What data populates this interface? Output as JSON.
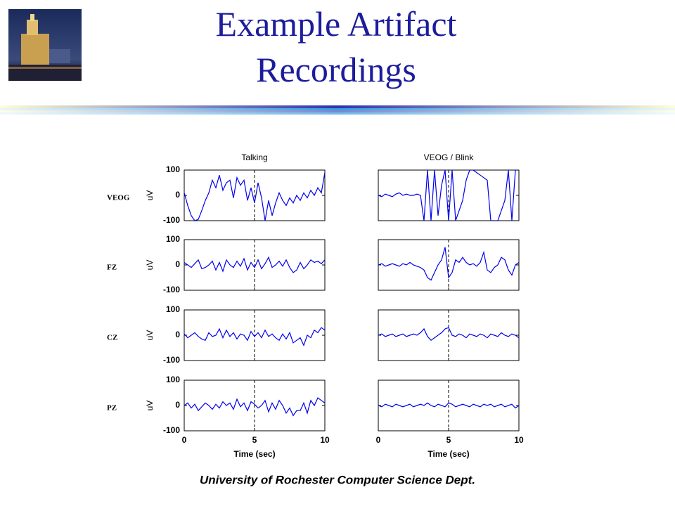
{
  "title": "Example Artifact Recordings",
  "footer": "University of Rochester Computer Science Dept.",
  "chart_data": [
    {
      "type": "line",
      "title": "Talking",
      "label": "VEOG",
      "ylabel": "uV",
      "xlim": [
        0,
        10
      ],
      "xticks": [
        0,
        5,
        10
      ],
      "ylim": [
        -100,
        100
      ],
      "yticks": [
        -100,
        0,
        100
      ],
      "marker_x": 5,
      "x": [
        0,
        0.25,
        0.5,
        0.75,
        1,
        1.25,
        1.5,
        1.75,
        2,
        2.25,
        2.5,
        2.75,
        3,
        3.25,
        3.5,
        3.75,
        4,
        4.25,
        4.5,
        4.75,
        5,
        5.25,
        5.5,
        5.75,
        6,
        6.25,
        6.5,
        6.75,
        7,
        7.25,
        7.5,
        7.75,
        8,
        8.25,
        8.5,
        8.75,
        9,
        9.25,
        9.5,
        9.75,
        10
      ],
      "series": [
        {
          "color": "#0000ee",
          "values": [
            10,
            -40,
            -80,
            -100,
            -95,
            -60,
            -20,
            10,
            60,
            30,
            80,
            20,
            50,
            60,
            -10,
            70,
            40,
            60,
            -20,
            30,
            -30,
            50,
            -10,
            -100,
            -20,
            -80,
            -30,
            10,
            -20,
            -40,
            -10,
            -30,
            0,
            -20,
            10,
            -10,
            20,
            0,
            30,
            10,
            90
          ]
        }
      ]
    },
    {
      "type": "line",
      "title": "VEOG / Blink",
      "xlim": [
        0,
        10
      ],
      "xticks": [
        0,
        5,
        10
      ],
      "ylim": [
        -100,
        100
      ],
      "yticks": [
        -100,
        0,
        100
      ],
      "marker_x": 5,
      "x": [
        0,
        0.25,
        0.5,
        0.75,
        1,
        1.25,
        1.5,
        1.75,
        2,
        2.25,
        2.5,
        2.75,
        3,
        3.25,
        3.5,
        3.75,
        4,
        4.25,
        4.5,
        4.75,
        5,
        5.25,
        5.5,
        5.75,
        6,
        6.25,
        6.5,
        6.75,
        7,
        7.25,
        7.5,
        7.75,
        8,
        8.25,
        8.5,
        8.75,
        9,
        9.25,
        9.5,
        9.75,
        10
      ],
      "series": [
        {
          "color": "#0000ee",
          "values": [
            0,
            -5,
            5,
            0,
            -5,
            5,
            10,
            0,
            5,
            0,
            0,
            5,
            0,
            -100,
            100,
            -100,
            100,
            -80,
            40,
            100,
            -100,
            100,
            -100,
            -60,
            -20,
            60,
            100,
            100,
            90,
            80,
            70,
            60,
            -100,
            -100,
            -100,
            -60,
            -20,
            100,
            -100,
            100,
            100
          ]
        }
      ]
    },
    {
      "type": "line",
      "label": "FZ",
      "ylabel": "uV",
      "xlim": [
        0,
        10
      ],
      "xticks": [
        0,
        5,
        10
      ],
      "ylim": [
        -100,
        100
      ],
      "yticks": [
        -100,
        0,
        100
      ],
      "marker_x": 5,
      "x": [
        0,
        0.25,
        0.5,
        0.75,
        1,
        1.25,
        1.5,
        1.75,
        2,
        2.25,
        2.5,
        2.75,
        3,
        3.25,
        3.5,
        3.75,
        4,
        4.25,
        4.5,
        4.75,
        5,
        5.25,
        5.5,
        5.75,
        6,
        6.25,
        6.5,
        6.75,
        7,
        7.25,
        7.5,
        7.75,
        8,
        8.25,
        8.5,
        8.75,
        9,
        9.25,
        9.5,
        9.75,
        10
      ],
      "series": [
        {
          "color": "#0000ee",
          "values": [
            10,
            0,
            -10,
            5,
            20,
            -15,
            -10,
            0,
            15,
            -20,
            10,
            -25,
            20,
            0,
            -10,
            15,
            -5,
            25,
            -20,
            10,
            -10,
            20,
            -15,
            5,
            30,
            -10,
            0,
            15,
            -5,
            20,
            -10,
            -30,
            -20,
            10,
            -15,
            0,
            20,
            10,
            15,
            5,
            20
          ]
        }
      ]
    },
    {
      "type": "line",
      "xlim": [
        0,
        10
      ],
      "xticks": [
        0,
        5,
        10
      ],
      "ylim": [
        -100,
        100
      ],
      "yticks": [
        -100,
        0,
        100
      ],
      "marker_x": 5,
      "x": [
        0,
        0.25,
        0.5,
        0.75,
        1,
        1.25,
        1.5,
        1.75,
        2,
        2.25,
        2.5,
        2.75,
        3,
        3.25,
        3.5,
        3.75,
        4,
        4.25,
        4.5,
        4.75,
        5,
        5.25,
        5.5,
        5.75,
        6,
        6.25,
        6.5,
        6.75,
        7,
        7.25,
        7.5,
        7.75,
        8,
        8.25,
        8.5,
        8.75,
        9,
        9.25,
        9.5,
        9.75,
        10
      ],
      "series": [
        {
          "color": "#0000ee",
          "values": [
            0,
            5,
            -5,
            0,
            5,
            0,
            -5,
            5,
            0,
            10,
            0,
            -5,
            -10,
            -20,
            -50,
            -60,
            -30,
            0,
            20,
            70,
            -50,
            -30,
            20,
            10,
            30,
            10,
            0,
            5,
            -5,
            10,
            50,
            -20,
            -30,
            -10,
            0,
            30,
            20,
            -20,
            -40,
            0,
            10
          ]
        }
      ]
    },
    {
      "type": "line",
      "label": "CZ",
      "ylabel": "uV",
      "xlim": [
        0,
        10
      ],
      "xticks": [
        0,
        5,
        10
      ],
      "ylim": [
        -100,
        100
      ],
      "yticks": [
        -100,
        0,
        100
      ],
      "marker_x": 5,
      "x": [
        0,
        0.25,
        0.5,
        0.75,
        1,
        1.25,
        1.5,
        1.75,
        2,
        2.25,
        2.5,
        2.75,
        3,
        3.25,
        3.5,
        3.75,
        4,
        4.25,
        4.5,
        4.75,
        5,
        5.25,
        5.5,
        5.75,
        6,
        6.25,
        6.5,
        6.75,
        7,
        7.25,
        7.5,
        7.75,
        8,
        8.25,
        8.5,
        8.75,
        9,
        9.25,
        9.5,
        9.75,
        10
      ],
      "series": [
        {
          "color": "#0000ee",
          "values": [
            5,
            -10,
            0,
            10,
            -5,
            -15,
            -20,
            10,
            -5,
            0,
            25,
            -10,
            20,
            -5,
            10,
            -15,
            5,
            0,
            -20,
            15,
            -5,
            10,
            -10,
            20,
            -5,
            5,
            -10,
            -20,
            5,
            -15,
            10,
            -30,
            -20,
            -10,
            -40,
            0,
            -10,
            20,
            10,
            30,
            20
          ]
        }
      ]
    },
    {
      "type": "line",
      "xlim": [
        0,
        10
      ],
      "xticks": [
        0,
        5,
        10
      ],
      "ylim": [
        -100,
        100
      ],
      "yticks": [
        -100,
        0,
        100
      ],
      "marker_x": 5,
      "x": [
        0,
        0.25,
        0.5,
        0.75,
        1,
        1.25,
        1.5,
        1.75,
        2,
        2.25,
        2.5,
        2.75,
        3,
        3.25,
        3.5,
        3.75,
        4,
        4.25,
        4.5,
        4.75,
        5,
        5.25,
        5.5,
        5.75,
        6,
        6.25,
        6.5,
        6.75,
        7,
        7.25,
        7.5,
        7.75,
        8,
        8.25,
        8.5,
        8.75,
        9,
        9.25,
        9.5,
        9.75,
        10
      ],
      "series": [
        {
          "color": "#0000ee",
          "values": [
            0,
            5,
            -5,
            0,
            5,
            -5,
            0,
            5,
            -5,
            0,
            5,
            0,
            10,
            25,
            -5,
            -20,
            -10,
            0,
            10,
            25,
            30,
            0,
            -5,
            5,
            0,
            -10,
            5,
            0,
            -5,
            5,
            0,
            -10,
            5,
            0,
            -5,
            10,
            0,
            -5,
            5,
            0,
            -10
          ]
        }
      ]
    },
    {
      "type": "line",
      "label": "PZ",
      "ylabel": "uV",
      "xlabel": "Time (sec)",
      "xlim": [
        0,
        10
      ],
      "xticks": [
        0,
        5,
        10
      ],
      "ylim": [
        -100,
        100
      ],
      "yticks": [
        -100,
        0,
        100
      ],
      "marker_x": 5,
      "x": [
        0,
        0.25,
        0.5,
        0.75,
        1,
        1.25,
        1.5,
        1.75,
        2,
        2.25,
        2.5,
        2.75,
        3,
        3.25,
        3.5,
        3.75,
        4,
        4.25,
        4.5,
        4.75,
        5,
        5.25,
        5.5,
        5.75,
        6,
        6.25,
        6.5,
        6.75,
        7,
        7.25,
        7.5,
        7.75,
        8,
        8.25,
        8.5,
        8.75,
        9,
        9.25,
        9.5,
        9.75,
        10
      ],
      "series": [
        {
          "color": "#0000ee",
          "values": [
            0,
            10,
            -10,
            5,
            -20,
            -5,
            10,
            0,
            -15,
            5,
            -10,
            15,
            0,
            10,
            -15,
            25,
            -5,
            10,
            -20,
            15,
            5,
            -10,
            0,
            20,
            -25,
            10,
            -15,
            20,
            0,
            -30,
            -10,
            -40,
            -20,
            -20,
            10,
            -30,
            20,
            0,
            30,
            20,
            10
          ]
        }
      ]
    },
    {
      "type": "line",
      "xlabel": "Time (sec)",
      "xlim": [
        0,
        10
      ],
      "xticks": [
        0,
        5,
        10
      ],
      "ylim": [
        -100,
        100
      ],
      "yticks": [
        -100,
        0,
        100
      ],
      "marker_x": 5,
      "x": [
        0,
        0.25,
        0.5,
        0.75,
        1,
        1.25,
        1.5,
        1.75,
        2,
        2.25,
        2.5,
        2.75,
        3,
        3.25,
        3.5,
        3.75,
        4,
        4.25,
        4.5,
        4.75,
        5,
        5.25,
        5.5,
        5.75,
        6,
        6.25,
        6.5,
        6.75,
        7,
        7.25,
        7.5,
        7.75,
        8,
        8.25,
        8.5,
        8.75,
        9,
        9.25,
        9.5,
        9.75,
        10
      ],
      "series": [
        {
          "color": "#0000ee",
          "values": [
            0,
            -5,
            5,
            0,
            -5,
            5,
            0,
            -5,
            0,
            5,
            -5,
            0,
            5,
            0,
            10,
            0,
            -5,
            5,
            0,
            -5,
            10,
            5,
            -5,
            0,
            5,
            0,
            -5,
            5,
            0,
            -5,
            5,
            0,
            5,
            -5,
            0,
            5,
            -5,
            0,
            5,
            -10,
            0
          ]
        }
      ]
    }
  ]
}
